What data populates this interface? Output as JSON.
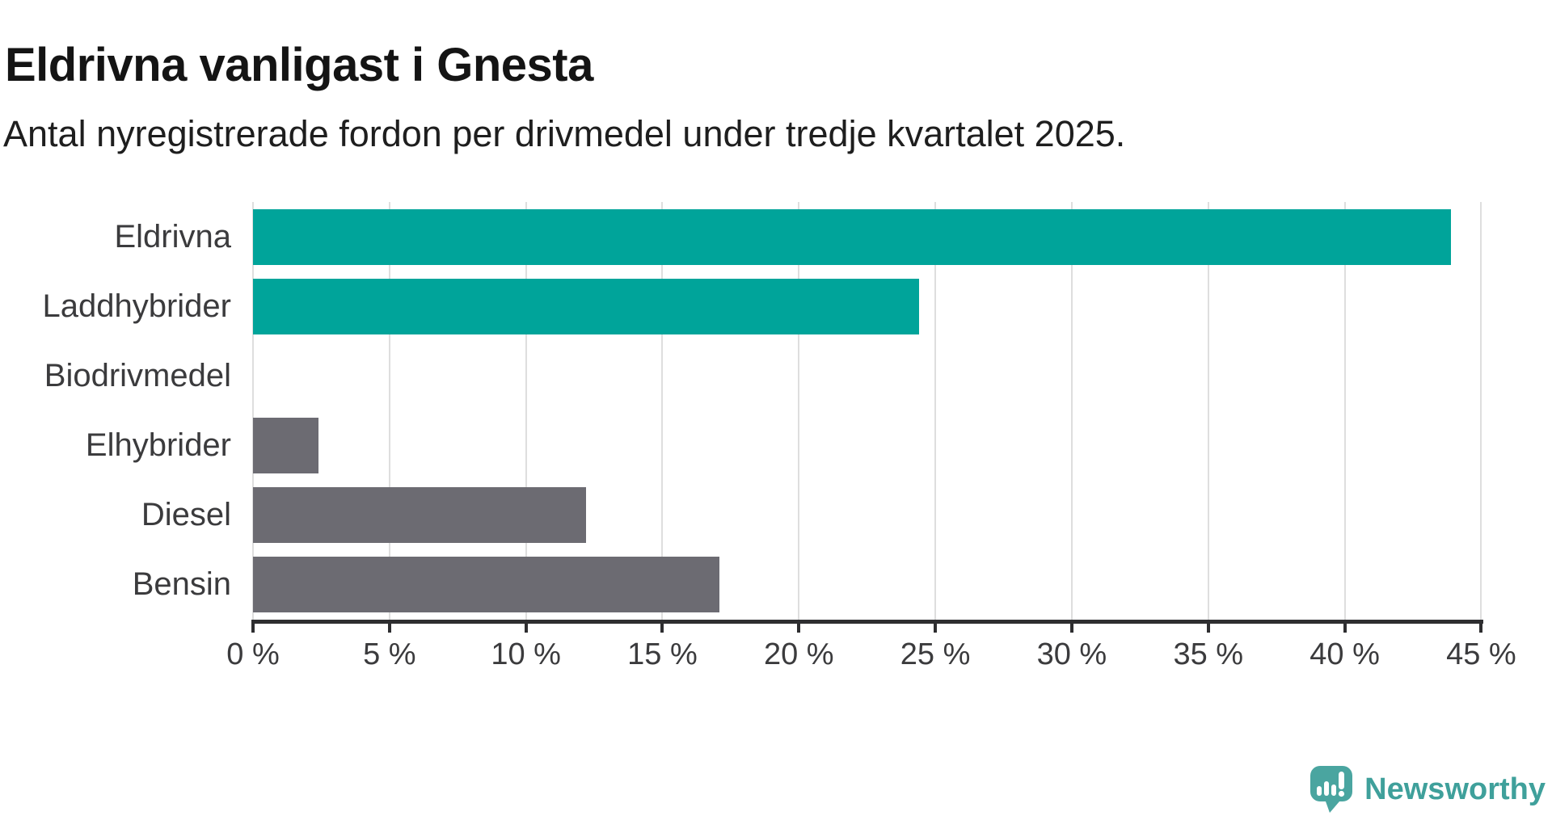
{
  "title": "Eldrivna vanligast i Gnesta",
  "subtitle": "Antal nyregistrerade fordon per drivmedel under tredje kvartalet 2025.",
  "chart_data": {
    "type": "bar",
    "orientation": "horizontal",
    "categories": [
      "Eldrivna",
      "Laddhybrider",
      "Biodrivmedel",
      "Elhybrider",
      "Diesel",
      "Bensin"
    ],
    "values": [
      43.9,
      24.4,
      0,
      2.4,
      12.2,
      17.1
    ],
    "unit": "%",
    "series_colors": [
      "#00a49a",
      "#00a49a",
      "#6c6b72",
      "#6c6b72",
      "#6c6b72",
      "#6c6b72"
    ],
    "highlight_color": "#00a49a",
    "default_color": "#6c6b72",
    "xlim": [
      0,
      45
    ],
    "x_ticks": [
      0,
      5,
      10,
      15,
      20,
      25,
      30,
      35,
      40,
      45
    ],
    "x_tick_labels": [
      "0 %",
      "5 %",
      "10 %",
      "15 %",
      "20 %",
      "25 %",
      "30 %",
      "35 %",
      "40 %",
      "45 %"
    ],
    "grid": true,
    "gridline_color": "#dedede",
    "axis_color": "#2e2e30",
    "label_color": "#3b3b3d",
    "title": "Eldrivna vanligast i Gnesta",
    "xlabel": "",
    "ylabel": ""
  },
  "branding": {
    "logo_text": "Newsworthy",
    "logo_text_color": "#3fa09b",
    "logo_bubble_color": "#4aa5a0"
  }
}
